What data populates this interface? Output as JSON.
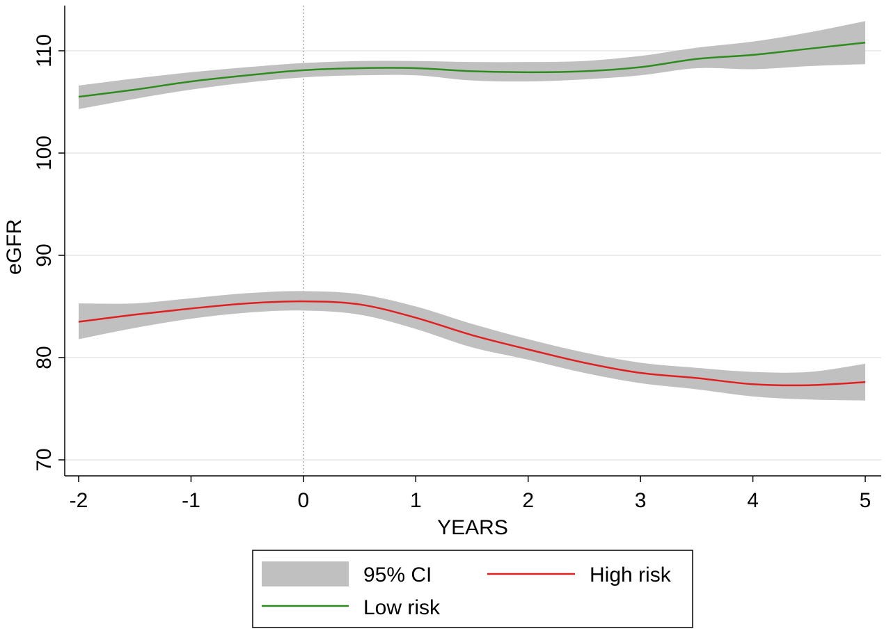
{
  "chart_data": {
    "type": "line",
    "xlabel": "YEARS",
    "ylabel": "eGFR",
    "xlim": [
      -2,
      5
    ],
    "ylim": [
      70,
      113
    ],
    "xticks": [
      -2,
      -1,
      0,
      1,
      2,
      3,
      4,
      5
    ],
    "yticks": [
      70,
      80,
      90,
      100,
      110
    ],
    "grid": "horizontal",
    "reference_line_x": 0,
    "legend_position": "bottom",
    "legend": {
      "ci_label": "95% CI",
      "high_label": "High risk",
      "low_label": "Low risk"
    },
    "colors": {
      "ci_band": "#c0c0c0",
      "high": "#e02020",
      "low": "#2e8b1e",
      "grid": "#e6e6e6",
      "axis": "#000000",
      "reference": "#999999"
    },
    "x": [
      -2,
      -1.5,
      -1,
      -0.5,
      0,
      0.5,
      1,
      1.5,
      2,
      2.5,
      3,
      3.5,
      4,
      4.5,
      5
    ],
    "series": [
      {
        "name": "Low risk",
        "color": "#2e8b1e",
        "values": [
          105.5,
          106.2,
          107.0,
          107.6,
          108.1,
          108.3,
          108.3,
          108.0,
          107.9,
          108.0,
          108.4,
          109.2,
          109.6,
          110.2,
          110.8
        ],
        "ci_lower": [
          104.3,
          105.3,
          106.2,
          106.9,
          107.4,
          107.6,
          107.6,
          107.1,
          107.0,
          107.2,
          107.6,
          108.3,
          108.2,
          108.5,
          108.7
        ],
        "ci_upper": [
          106.6,
          107.3,
          107.9,
          108.4,
          108.8,
          109.0,
          109.0,
          108.9,
          108.9,
          109.0,
          109.5,
          110.3,
          110.9,
          111.8,
          112.9
        ]
      },
      {
        "name": "High risk",
        "color": "#e02020",
        "values": [
          83.5,
          84.2,
          84.8,
          85.3,
          85.5,
          85.2,
          83.9,
          82.2,
          80.8,
          79.5,
          78.5,
          78.0,
          77.4,
          77.3,
          77.6
        ],
        "ci_lower": [
          81.8,
          82.9,
          83.8,
          84.4,
          84.6,
          84.2,
          82.8,
          81.0,
          79.8,
          78.5,
          77.5,
          76.9,
          76.2,
          75.9,
          75.8
        ],
        "ci_upper": [
          85.3,
          85.3,
          85.8,
          86.3,
          86.5,
          86.2,
          85.0,
          83.3,
          81.8,
          80.5,
          79.5,
          79.0,
          78.6,
          78.6,
          79.4
        ]
      }
    ]
  }
}
